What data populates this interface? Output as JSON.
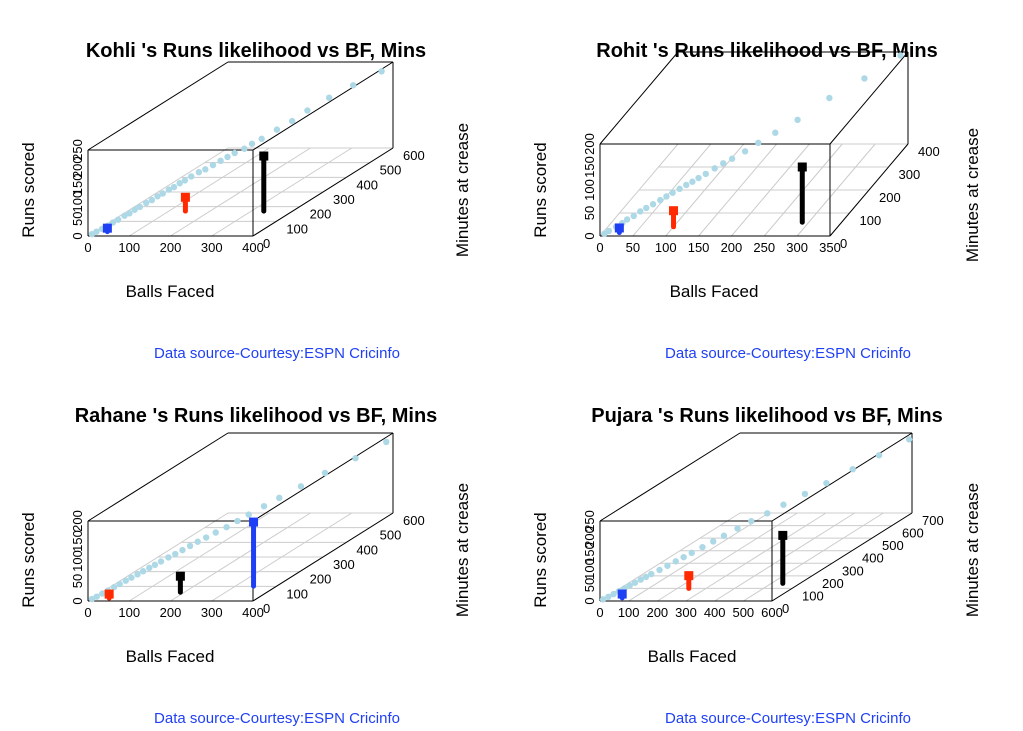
{
  "colors": {
    "points": "#add8e6",
    "box": "#000000",
    "grid": "#cccccc",
    "source_text": "#1f3ff5",
    "stick_blue": "#1f3ff5",
    "stick_red": "#ff2a00",
    "stick_black": "#000000"
  },
  "chart_data": [
    {
      "type": "scatter3d",
      "title": "Kohli 's Runs likelihood vs BF, Mins",
      "xlabel": "Balls Faced",
      "ylabel": "Minutes at crease",
      "zlabel": "Runs scored",
      "source": "Data source-Courtesy:ESPN Cricinfo",
      "x_ticks": [
        "0",
        "100",
        "200",
        "300",
        "400"
      ],
      "y_ticks": [
        "0",
        "100",
        "200",
        "300",
        "400",
        "500",
        "600"
      ],
      "z_ticks": [
        "0",
        "50",
        "100",
        "150",
        "200",
        "250"
      ],
      "xlim": [
        0,
        400
      ],
      "ylim": [
        0,
        600
      ],
      "zlim": [
        0,
        250
      ],
      "points": [
        [
          5,
          8,
          2
        ],
        [
          12,
          15,
          6
        ],
        [
          20,
          25,
          10
        ],
        [
          28,
          35,
          15
        ],
        [
          35,
          45,
          20
        ],
        [
          42,
          55,
          24
        ],
        [
          50,
          68,
          30
        ],
        [
          58,
          75,
          34
        ],
        [
          65,
          85,
          40
        ],
        [
          72,
          95,
          44
        ],
        [
          80,
          108,
          50
        ],
        [
          88,
          118,
          54
        ],
        [
          95,
          130,
          60
        ],
        [
          102,
          140,
          64
        ],
        [
          110,
          152,
          70
        ],
        [
          118,
          160,
          74
        ],
        [
          125,
          172,
          80
        ],
        [
          132,
          182,
          84
        ],
        [
          140,
          195,
          90
        ],
        [
          150,
          210,
          96
        ],
        [
          160,
          220,
          100
        ],
        [
          170,
          235,
          106
        ],
        [
          180,
          250,
          112
        ],
        [
          190,
          262,
          118
        ],
        [
          200,
          275,
          124
        ],
        [
          215,
          290,
          130
        ],
        [
          225,
          305,
          138
        ],
        [
          240,
          320,
          146
        ],
        [
          260,
          350,
          160
        ],
        [
          280,
          380,
          172
        ],
        [
          300,
          410,
          190
        ],
        [
          330,
          450,
          210
        ],
        [
          360,
          500,
          225
        ],
        [
          395,
          560,
          240
        ]
      ],
      "sticks": [
        {
          "color": "stick_blue",
          "x": 30,
          "y": 30,
          "z_low": 0,
          "z_high": 10
        },
        {
          "color": "stick_red",
          "x": 140,
          "y": 170,
          "z_low": 0,
          "z_high": 40
        },
        {
          "color": "stick_black",
          "x": 330,
          "y": 170,
          "z_low": 0,
          "z_high": 160
        }
      ]
    },
    {
      "type": "scatter3d",
      "title": "Rohit 's Runs likelihood vs BF, Mins",
      "xlabel": "Balls Faced",
      "ylabel": "Minutes at crease",
      "zlabel": "Runs scored",
      "source": "Data source-Courtesy:ESPN Cricinfo",
      "x_ticks": [
        "0",
        "50",
        "100",
        "150",
        "200",
        "250",
        "300",
        "350"
      ],
      "y_ticks": [
        "0",
        "100",
        "200",
        "300",
        "400"
      ],
      "z_ticks": [
        "0",
        "50",
        "100",
        "150",
        "200"
      ],
      "xlim": [
        0,
        350
      ],
      "ylim": [
        0,
        400
      ],
      "zlim": [
        0,
        200
      ],
      "points": [
        [
          5,
          6,
          2
        ],
        [
          10,
          12,
          5
        ],
        [
          18,
          22,
          9
        ],
        [
          25,
          30,
          13
        ],
        [
          30,
          38,
          17
        ],
        [
          38,
          45,
          21
        ],
        [
          45,
          55,
          26
        ],
        [
          52,
          62,
          30
        ],
        [
          60,
          70,
          34
        ],
        [
          68,
          80,
          38
        ],
        [
          75,
          88,
          42
        ],
        [
          82,
          96,
          46
        ],
        [
          90,
          105,
          50
        ],
        [
          98,
          112,
          55
        ],
        [
          105,
          120,
          58
        ],
        [
          112,
          128,
          62
        ],
        [
          120,
          138,
          66
        ],
        [
          130,
          150,
          72
        ],
        [
          140,
          160,
          78
        ],
        [
          150,
          172,
          82
        ],
        [
          165,
          188,
          90
        ],
        [
          180,
          205,
          100
        ],
        [
          200,
          225,
          112
        ],
        [
          225,
          255,
          125
        ],
        [
          260,
          300,
          150
        ],
        [
          300,
          345,
          170
        ],
        [
          340,
          395,
          195
        ]
      ],
      "sticks": [
        {
          "color": "stick_blue",
          "x": 25,
          "y": 15,
          "z_low": 0,
          "z_high": 10
        },
        {
          "color": "stick_red",
          "x": 100,
          "y": 40,
          "z_low": 0,
          "z_high": 35
        },
        {
          "color": "stick_black",
          "x": 290,
          "y": 60,
          "z_low": 0,
          "z_high": 120
        }
      ]
    },
    {
      "type": "scatter3d",
      "title": "Rahane 's Runs likelihood vs BF, Mins",
      "xlabel": "Balls Faced",
      "ylabel": "Minutes at crease",
      "zlabel": "Runs scored",
      "source": "Data source-Courtesy:ESPN Cricinfo",
      "x_ticks": [
        "0",
        "100",
        "200",
        "300",
        "400"
      ],
      "y_ticks": [
        "0",
        "100",
        "200",
        "300",
        "400",
        "500",
        "600"
      ],
      "z_ticks": [
        "0",
        "50",
        "100",
        "150",
        "200"
      ],
      "xlim": [
        0,
        400
      ],
      "ylim": [
        0,
        600
      ],
      "zlim": [
        0,
        200
      ],
      "points": [
        [
          5,
          8,
          2
        ],
        [
          12,
          16,
          5
        ],
        [
          20,
          26,
          9
        ],
        [
          28,
          36,
          13
        ],
        [
          36,
          48,
          17
        ],
        [
          44,
          58,
          21
        ],
        [
          52,
          70,
          25
        ],
        [
          60,
          80,
          29
        ],
        [
          68,
          92,
          33
        ],
        [
          76,
          102,
          37
        ],
        [
          84,
          114,
          41
        ],
        [
          92,
          124,
          45
        ],
        [
          100,
          136,
          49
        ],
        [
          110,
          150,
          54
        ],
        [
          120,
          162,
          58
        ],
        [
          130,
          175,
          63
        ],
        [
          140,
          190,
          68
        ],
        [
          150,
          205,
          73
        ],
        [
          162,
          220,
          78
        ],
        [
          175,
          238,
          84
        ],
        [
          190,
          258,
          90
        ],
        [
          205,
          278,
          98
        ],
        [
          220,
          300,
          106
        ],
        [
          240,
          330,
          116
        ],
        [
          260,
          360,
          126
        ],
        [
          290,
          400,
          140
        ],
        [
          320,
          450,
          155
        ],
        [
          360,
          510,
          170
        ],
        [
          395,
          580,
          185
        ]
      ],
      "sticks": [
        {
          "color": "stick_blue",
          "x": 390,
          "y": 20,
          "z_low": 30,
          "z_high": 190
        },
        {
          "color": "stick_red",
          "x": 40,
          "y": 20,
          "z_low": 0,
          "z_high": 10
        },
        {
          "color": "stick_black",
          "x": 190,
          "y": 60,
          "z_low": 0,
          "z_high": 40
        }
      ]
    },
    {
      "type": "scatter3d",
      "title": "Pujara 's Runs likelihood vs BF, Mins",
      "xlabel": "Balls Faced",
      "ylabel": "Minutes at crease",
      "zlabel": "Runs scored",
      "source": "Data source-Courtesy:ESPN Cricinfo",
      "x_ticks": [
        "0",
        "100",
        "200",
        "300",
        "400",
        "500",
        "600"
      ],
      "y_ticks": [
        "0",
        "100",
        "200",
        "300",
        "400",
        "500",
        "600",
        "700"
      ],
      "z_ticks": [
        "0",
        "50",
        "100",
        "150",
        "200",
        "250"
      ],
      "xlim": [
        0,
        600
      ],
      "ylim": [
        0,
        700
      ],
      "zlim": [
        0,
        250
      ],
      "points": [
        [
          5,
          8,
          2
        ],
        [
          15,
          20,
          5
        ],
        [
          25,
          32,
          9
        ],
        [
          35,
          45,
          13
        ],
        [
          45,
          58,
          17
        ],
        [
          55,
          70,
          21
        ],
        [
          65,
          82,
          25
        ],
        [
          75,
          96,
          29
        ],
        [
          85,
          108,
          33
        ],
        [
          95,
          120,
          37
        ],
        [
          110,
          140,
          42
        ],
        [
          125,
          158,
          48
        ],
        [
          140,
          178,
          54
        ],
        [
          155,
          196,
          60
        ],
        [
          170,
          215,
          66
        ],
        [
          190,
          240,
          74
        ],
        [
          210,
          265,
          82
        ],
        [
          230,
          290,
          90
        ],
        [
          255,
          322,
          100
        ],
        [
          280,
          355,
          110
        ],
        [
          310,
          392,
          120
        ],
        [
          340,
          430,
          132
        ],
        [
          380,
          480,
          146
        ],
        [
          420,
          530,
          160
        ],
        [
          470,
          590,
          180
        ],
        [
          520,
          650,
          200
        ],
        [
          590,
          700,
          230
        ]
      ],
      "sticks": [
        {
          "color": "stick_blue",
          "x": 60,
          "y": 25,
          "z_low": 0,
          "z_high": 12
        },
        {
          "color": "stick_red",
          "x": 240,
          "y": 100,
          "z_low": 0,
          "z_high": 40
        },
        {
          "color": "stick_black",
          "x": 540,
          "y": 140,
          "z_low": 0,
          "z_high": 150
        }
      ]
    }
  ]
}
